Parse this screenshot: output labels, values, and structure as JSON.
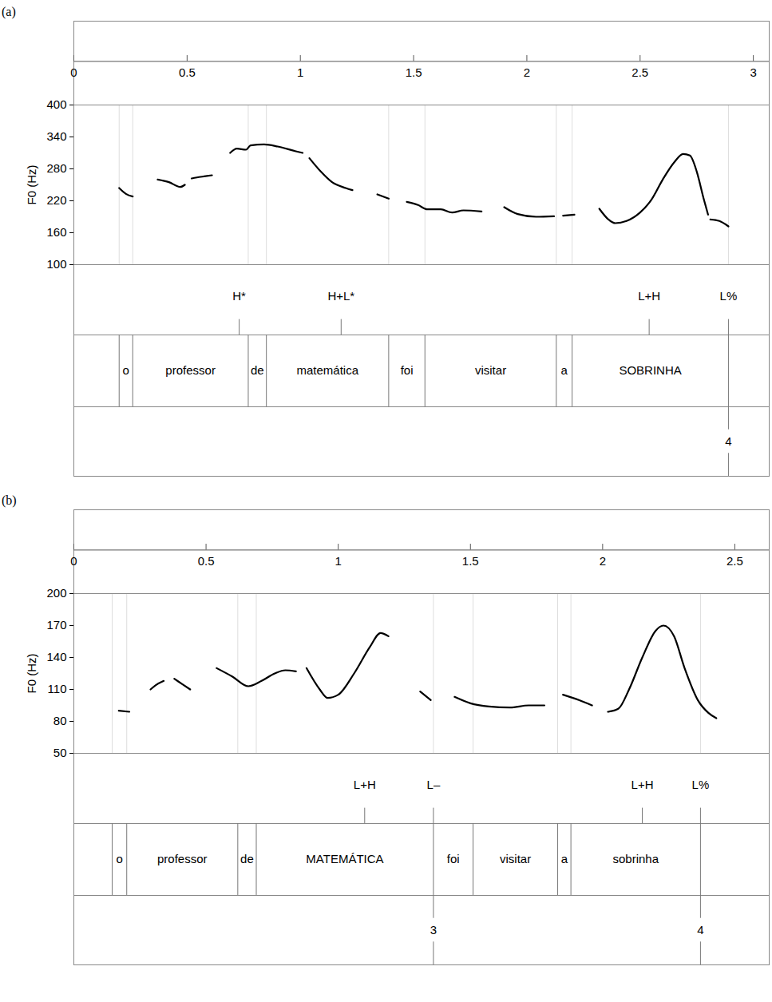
{
  "chart_data": [
    {
      "type": "line",
      "title": "(a)",
      "ylabel": "F0 (Hz)",
      "color": "#000000",
      "xlim": [
        0,
        3.07
      ],
      "xticks": [
        0,
        0.5,
        1,
        1.5,
        2,
        2.5,
        3
      ],
      "ylim": [
        100,
        400
      ],
      "yticks": [
        100,
        160,
        220,
        280,
        340,
        400
      ],
      "x": [
        0.2,
        0.23,
        0.26,
        0.3,
        0.37,
        0.42,
        0.47,
        0.49,
        0.505,
        0.52,
        0.56,
        0.61,
        0.65,
        0.69,
        0.72,
        0.76,
        0.78,
        0.84,
        0.9,
        0.98,
        1.01,
        1.025,
        1.04,
        1.09,
        1.14,
        1.2,
        1.23,
        1.28,
        1.34,
        1.39,
        1.43,
        1.47,
        1.52,
        1.56,
        1.62,
        1.67,
        1.72,
        1.8,
        1.85,
        1.9,
        1.96,
        2.04,
        2.12,
        2.14,
        2.16,
        2.21,
        2.27,
        2.32,
        2.36,
        2.39,
        2.44,
        2.5,
        2.55,
        2.6,
        2.65,
        2.69,
        2.72,
        2.75,
        2.78,
        2.8,
        2.805,
        2.81,
        2.85,
        2.89
      ],
      "values": [
        244,
        233,
        228,
        null,
        260,
        255,
        246,
        250,
        null,
        262,
        265,
        268,
        null,
        310,
        318,
        316,
        324,
        326,
        322,
        313,
        310,
        null,
        300,
        275,
        255,
        244,
        240,
        null,
        232,
        224,
        null,
        218,
        212,
        204,
        204,
        198,
        202,
        200,
        null,
        208,
        195,
        190,
        191,
        null,
        192,
        194,
        null,
        205,
        185,
        178,
        182,
        198,
        222,
        260,
        292,
        308,
        305,
        275,
        225,
        194,
        null,
        185,
        182,
        172
      ],
      "tones": [
        {
          "label": "H*",
          "time": 0.73
        },
        {
          "label": "H+L*",
          "time": 1.18
        },
        {
          "label": "L+H",
          "time": 2.54
        },
        {
          "label": "L%",
          "time": 2.89
        }
      ],
      "words": [
        {
          "label": "o",
          "start": 0.2,
          "end": 0.26
        },
        {
          "label": "professor",
          "start": 0.26,
          "end": 0.77
        },
        {
          "label": "de",
          "start": 0.77,
          "end": 0.85
        },
        {
          "label": "matemática",
          "start": 0.85,
          "end": 1.39
        },
        {
          "label": "foi",
          "start": 1.39,
          "end": 1.55
        },
        {
          "label": "visitar",
          "start": 1.55,
          "end": 2.13
        },
        {
          "label": "a",
          "start": 2.13,
          "end": 2.2
        },
        {
          "label": "SOBRINHA",
          "start": 2.2,
          "end": 2.89
        }
      ],
      "breaks": [
        {
          "value": 4,
          "time": 2.89
        }
      ]
    },
    {
      "type": "line",
      "title": "(b)",
      "ylabel": "F0 (Hz)",
      "color": "#000000",
      "xlim": [
        0,
        2.63
      ],
      "xticks": [
        0,
        0.5,
        1,
        1.5,
        2,
        2.5
      ],
      "ylim": [
        50,
        200
      ],
      "yticks": [
        50,
        80,
        110,
        140,
        170,
        200
      ],
      "x": [
        0.17,
        0.21,
        0.25,
        0.29,
        0.31,
        0.34,
        0.36,
        0.38,
        0.41,
        0.44,
        0.49,
        0.54,
        0.6,
        0.66,
        0.71,
        0.76,
        0.8,
        0.84,
        0.86,
        0.88,
        0.93,
        0.96,
        1.0,
        1.06,
        1.12,
        1.16,
        1.19,
        1.25,
        1.31,
        1.35,
        1.4,
        1.44,
        1.5,
        1.57,
        1.65,
        1.72,
        1.78,
        1.82,
        1.85,
        1.91,
        1.96,
        1.99,
        2.02,
        2.06,
        2.1,
        2.15,
        2.2,
        2.23,
        2.27,
        2.31,
        2.36,
        2.4,
        2.43
      ],
      "values": [
        90,
        89,
        null,
        110,
        114,
        118,
        null,
        120,
        115,
        110,
        null,
        130,
        122,
        113,
        118,
        125,
        128,
        127,
        null,
        130,
        110,
        102,
        105,
        125,
        150,
        163,
        160,
        null,
        108,
        100,
        null,
        103,
        97,
        94,
        93,
        95,
        95,
        null,
        105,
        100,
        95,
        null,
        89,
        92,
        110,
        140,
        165,
        170,
        160,
        130,
        100,
        88,
        83
      ],
      "tones": [
        {
          "label": "L+H",
          "time": 1.1
        },
        {
          "label": "L–",
          "time": 1.36
        },
        {
          "label": "L+H",
          "time": 2.15
        },
        {
          "label": "L%",
          "time": 2.37
        }
      ],
      "words": [
        {
          "label": "o",
          "start": 0.145,
          "end": 0.2
        },
        {
          "label": "professor",
          "start": 0.2,
          "end": 0.62
        },
        {
          "label": "de",
          "start": 0.62,
          "end": 0.69
        },
        {
          "label": "MATEMÁTICA",
          "start": 0.69,
          "end": 1.36
        },
        {
          "label": "foi",
          "start": 1.36,
          "end": 1.51
        },
        {
          "label": "visitar",
          "start": 1.51,
          "end": 1.83
        },
        {
          "label": "a",
          "start": 1.83,
          "end": 1.88
        },
        {
          "label": "sobrinha",
          "start": 1.88,
          "end": 2.37
        }
      ],
      "breaks": [
        {
          "value": 3,
          "time": 1.36
        },
        {
          "value": 4,
          "time": 2.37
        }
      ]
    }
  ]
}
